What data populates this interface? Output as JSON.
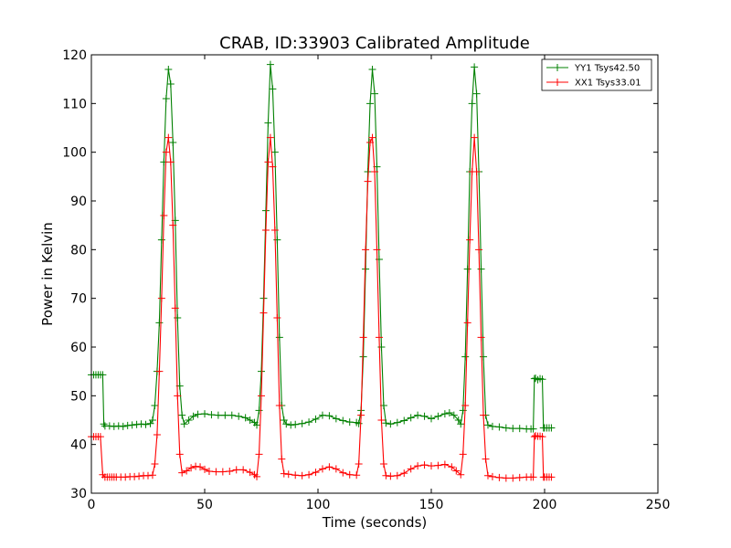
{
  "chart_data": {
    "type": "line",
    "title": "CRAB, ID:33903 Calibrated Amplitude",
    "xlabel": "Time (seconds)",
    "ylabel": "Power in Kelvin",
    "xlim": [
      0,
      250
    ],
    "ylim": [
      30,
      120
    ],
    "xticks": [
      "0",
      "50",
      "100",
      "150",
      "200",
      "250"
    ],
    "yticks": [
      "30",
      "40",
      "50",
      "60",
      "70",
      "80",
      "90",
      "100",
      "110",
      "120"
    ],
    "legend_position": "top-right",
    "grid": false,
    "series": [
      {
        "name": "YY1 Tsys42.50",
        "color": "#008000",
        "marker": "plus",
        "points": [
          [
            0,
            54.3
          ],
          [
            1,
            54.3
          ],
          [
            2,
            54.3
          ],
          [
            3,
            54.3
          ],
          [
            4,
            54.3
          ],
          [
            5,
            54.3
          ],
          [
            5.5,
            44.2
          ],
          [
            6,
            43.8
          ],
          [
            8,
            43.8
          ],
          [
            10,
            43.7
          ],
          [
            12,
            43.8
          ],
          [
            14,
            43.7
          ],
          [
            16,
            43.9
          ],
          [
            18,
            44.0
          ],
          [
            20,
            44.1
          ],
          [
            22,
            44.2
          ],
          [
            24,
            44.1
          ],
          [
            26,
            44.3
          ],
          [
            27,
            45
          ],
          [
            28,
            48
          ],
          [
            29,
            55
          ],
          [
            30,
            65
          ],
          [
            31,
            82
          ],
          [
            32,
            98
          ],
          [
            33,
            111
          ],
          [
            34,
            117
          ],
          [
            35,
            114
          ],
          [
            36,
            102
          ],
          [
            37,
            86
          ],
          [
            38,
            66
          ],
          [
            39,
            52
          ],
          [
            40,
            46
          ],
          [
            41,
            44.2
          ],
          [
            43,
            45
          ],
          [
            45,
            45.8
          ],
          [
            47,
            46.2
          ],
          [
            50,
            46.3
          ],
          [
            53,
            46.1
          ],
          [
            56,
            46
          ],
          [
            59,
            46
          ],
          [
            62,
            46
          ],
          [
            65,
            45.8
          ],
          [
            68,
            45.5
          ],
          [
            70,
            45
          ],
          [
            72,
            44.5
          ],
          [
            73,
            44
          ],
          [
            74,
            47
          ],
          [
            75,
            55
          ],
          [
            76,
            70
          ],
          [
            77,
            88
          ],
          [
            78,
            106
          ],
          [
            79,
            118
          ],
          [
            80,
            113
          ],
          [
            81,
            100
          ],
          [
            82,
            82
          ],
          [
            83,
            62
          ],
          [
            84,
            48
          ],
          [
            85,
            45
          ],
          [
            86,
            44.2
          ],
          [
            88,
            44
          ],
          [
            90,
            44.1
          ],
          [
            93,
            44.3
          ],
          [
            96,
            44.6
          ],
          [
            99,
            45.2
          ],
          [
            102,
            46
          ],
          [
            105,
            45.9
          ],
          [
            108,
            45.3
          ],
          [
            111,
            44.9
          ],
          [
            114,
            44.6
          ],
          [
            117,
            44.5
          ],
          [
            118,
            44.3
          ],
          [
            119,
            47
          ],
          [
            120,
            58
          ],
          [
            121,
            76
          ],
          [
            122,
            96
          ],
          [
            123,
            110
          ],
          [
            124,
            117
          ],
          [
            125,
            112
          ],
          [
            126,
            97
          ],
          [
            127,
            78
          ],
          [
            128,
            60
          ],
          [
            129,
            48
          ],
          [
            130,
            44.4
          ],
          [
            132,
            44.2
          ],
          [
            135,
            44.5
          ],
          [
            138,
            44.9
          ],
          [
            141,
            45.5
          ],
          [
            144,
            46
          ],
          [
            147,
            45.8
          ],
          [
            150,
            45.3
          ],
          [
            153,
            45.8
          ],
          [
            156,
            46.3
          ],
          [
            158,
            46.5
          ],
          [
            160,
            46
          ],
          [
            162,
            45
          ],
          [
            163,
            44.2
          ],
          [
            164,
            47
          ],
          [
            165,
            58
          ],
          [
            166,
            76
          ],
          [
            167,
            96
          ],
          [
            168,
            110
          ],
          [
            169,
            117.5
          ],
          [
            170,
            112
          ],
          [
            171,
            96
          ],
          [
            172,
            76
          ],
          [
            173,
            58
          ],
          [
            174,
            46
          ],
          [
            175,
            44
          ],
          [
            177,
            43.7
          ],
          [
            180,
            43.6
          ],
          [
            183,
            43.4
          ],
          [
            186,
            43.3
          ],
          [
            189,
            43.3
          ],
          [
            192,
            43.2
          ],
          [
            194,
            43.2
          ],
          [
            195,
            43.2
          ],
          [
            195.5,
            53.5
          ],
          [
            196,
            53.6
          ],
          [
            197,
            53.3
          ],
          [
            198,
            53.5
          ],
          [
            199,
            53.4
          ],
          [
            199.5,
            43.4
          ],
          [
            200,
            43.4
          ],
          [
            201,
            43.4
          ],
          [
            202,
            43.4
          ],
          [
            203,
            43.4
          ]
        ]
      },
      {
        "name": "XX1 Tsys33.01",
        "color": "#ff0000",
        "marker": "plus",
        "points": [
          [
            0,
            41.6
          ],
          [
            1,
            41.6
          ],
          [
            2,
            41.6
          ],
          [
            3,
            41.6
          ],
          [
            4,
            41.6
          ],
          [
            5,
            33.8
          ],
          [
            6,
            33.3
          ],
          [
            7,
            33.3
          ],
          [
            8,
            33.3
          ],
          [
            9,
            33.3
          ],
          [
            10,
            33.3
          ],
          [
            11,
            33.3
          ],
          [
            13,
            33.3
          ],
          [
            15,
            33.3
          ],
          [
            17,
            33.4
          ],
          [
            19,
            33.4
          ],
          [
            21,
            33.5
          ],
          [
            23,
            33.6
          ],
          [
            25,
            33.6
          ],
          [
            27,
            33.7
          ],
          [
            28,
            36
          ],
          [
            29,
            42
          ],
          [
            30,
            55
          ],
          [
            31,
            70
          ],
          [
            32,
            87
          ],
          [
            33,
            100
          ],
          [
            34,
            103
          ],
          [
            35,
            98
          ],
          [
            36,
            85
          ],
          [
            37,
            68
          ],
          [
            38,
            50
          ],
          [
            39,
            38
          ],
          [
            40,
            34.2
          ],
          [
            42,
            34.6
          ],
          [
            44,
            35.2
          ],
          [
            46,
            35.5
          ],
          [
            48,
            35.4
          ],
          [
            50,
            34.9
          ],
          [
            52,
            34.5
          ],
          [
            55,
            34.4
          ],
          [
            58,
            34.4
          ],
          [
            61,
            34.5
          ],
          [
            64,
            34.8
          ],
          [
            67,
            34.8
          ],
          [
            70,
            34.3
          ],
          [
            72,
            33.8
          ],
          [
            73,
            33.4
          ],
          [
            74,
            38
          ],
          [
            75,
            50
          ],
          [
            76,
            67
          ],
          [
            77,
            84
          ],
          [
            78,
            98
          ],
          [
            79,
            103
          ],
          [
            80,
            97
          ],
          [
            81,
            84
          ],
          [
            82,
            66
          ],
          [
            83,
            48
          ],
          [
            84,
            37
          ],
          [
            85,
            34
          ],
          [
            87,
            33.9
          ],
          [
            90,
            33.7
          ],
          [
            93,
            33.6
          ],
          [
            96,
            33.8
          ],
          [
            99,
            34.3
          ],
          [
            102,
            35
          ],
          [
            105,
            35.4
          ],
          [
            108,
            35
          ],
          [
            111,
            34.2
          ],
          [
            114,
            33.8
          ],
          [
            117,
            33.7
          ],
          [
            118,
            36
          ],
          [
            119,
            46
          ],
          [
            120,
            62
          ],
          [
            121,
            80
          ],
          [
            122,
            94
          ],
          [
            123,
            102
          ],
          [
            124,
            103
          ],
          [
            125,
            96
          ],
          [
            126,
            80
          ],
          [
            127,
            62
          ],
          [
            128,
            45
          ],
          [
            129,
            36
          ],
          [
            130,
            33.6
          ],
          [
            132,
            33.5
          ],
          [
            135,
            33.6
          ],
          [
            138,
            34.1
          ],
          [
            141,
            35
          ],
          [
            144,
            35.6
          ],
          [
            147,
            35.8
          ],
          [
            150,
            35.6
          ],
          [
            153,
            35.7
          ],
          [
            156,
            35.9
          ],
          [
            159,
            35.4
          ],
          [
            161,
            34.6
          ],
          [
            163,
            33.8
          ],
          [
            164,
            38
          ],
          [
            165,
            48
          ],
          [
            166,
            65
          ],
          [
            167,
            82
          ],
          [
            168,
            96
          ],
          [
            169,
            103
          ],
          [
            170,
            96
          ],
          [
            171,
            80
          ],
          [
            172,
            62
          ],
          [
            173,
            46
          ],
          [
            174,
            37
          ],
          [
            175,
            33.6
          ],
          [
            177,
            33.4
          ],
          [
            180,
            33.2
          ],
          [
            183,
            33.1
          ],
          [
            186,
            33.1
          ],
          [
            189,
            33.2
          ],
          [
            192,
            33.3
          ],
          [
            194,
            33.3
          ],
          [
            195,
            33.3
          ],
          [
            195.5,
            41.6
          ],
          [
            196,
            41.8
          ],
          [
            197,
            41.7
          ],
          [
            198,
            41.7
          ],
          [
            199,
            41.6
          ],
          [
            199.5,
            33.3
          ],
          [
            200,
            33.3
          ],
          [
            201,
            33.3
          ],
          [
            202,
            33.3
          ],
          [
            203,
            33.3
          ]
        ]
      }
    ]
  }
}
